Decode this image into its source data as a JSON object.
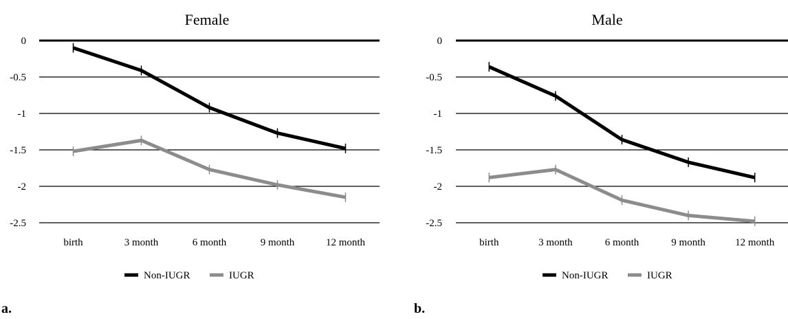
{
  "chart_data": [
    {
      "type": "line",
      "title": "Female",
      "panel_label": "a.",
      "categories": [
        "birth",
        "3 month",
        "6 month",
        "9 month",
        "12 month"
      ],
      "ylim": [
        -2.5,
        0
      ],
      "yticks": [
        0,
        -0.5,
        -1,
        -1.5,
        -2,
        -2.5
      ],
      "ytick_labels": [
        "0",
        "-0.5",
        "-1",
        "-1.5",
        "-2",
        "-2.5"
      ],
      "grid": true,
      "legend_position": "bottom",
      "series": [
        {
          "name": "Non-IUGR",
          "color": "#000000",
          "values": [
            -0.1,
            -0.41,
            -0.92,
            -1.27,
            -1.48
          ]
        },
        {
          "name": "IUGR",
          "color": "#8c8c8c",
          "values": [
            -1.52,
            -1.37,
            -1.77,
            -1.98,
            -2.15
          ]
        }
      ]
    },
    {
      "type": "line",
      "title": "Male",
      "panel_label": "b.",
      "categories": [
        "birth",
        "3 month",
        "6 month",
        "9 month",
        "12 month"
      ],
      "ylim": [
        -2.5,
        0
      ],
      "yticks": [
        0,
        -0.5,
        -1,
        -1.5,
        -2,
        -2.5
      ],
      "ytick_labels": [
        "0",
        "-0.5",
        "-1",
        "-1.5",
        "-2",
        "-2.5"
      ],
      "grid": true,
      "legend_position": "bottom",
      "series": [
        {
          "name": "Non-IUGR",
          "color": "#000000",
          "values": [
            -0.36,
            -0.76,
            -1.36,
            -1.67,
            -1.88
          ]
        },
        {
          "name": "IUGR",
          "color": "#8c8c8c",
          "values": [
            -1.88,
            -1.77,
            -2.19,
            -2.4,
            -2.48
          ]
        }
      ]
    }
  ]
}
